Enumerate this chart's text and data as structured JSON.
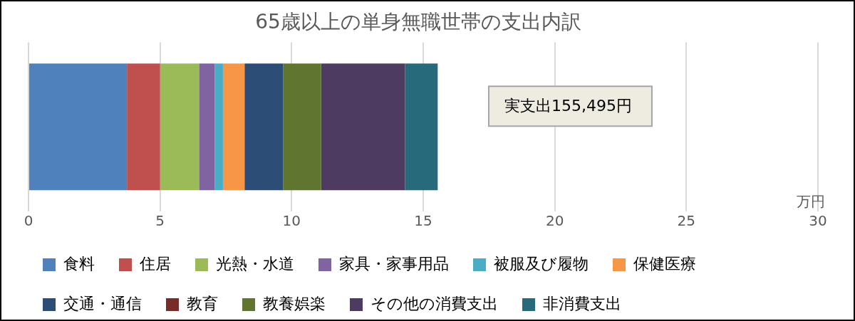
{
  "chart_data": {
    "type": "bar",
    "orientation": "horizontal",
    "stacked": true,
    "title": "65歳以上の単身無職世帯の支出内訳",
    "xlabel": "万円",
    "categories": [
      null
    ],
    "series": [
      {
        "name": "食料",
        "color": "#4f81bd",
        "values": [
          3.74
        ]
      },
      {
        "name": "住居",
        "color": "#c0504d",
        "values": [
          1.26
        ]
      },
      {
        "name": "光熱・水道",
        "color": "#9bbb59",
        "values": [
          1.48
        ]
      },
      {
        "name": "家具・家事用品",
        "color": "#8064a2",
        "values": [
          0.6
        ]
      },
      {
        "name": "被服及び履物",
        "color": "#4bacc6",
        "values": [
          0.31
        ]
      },
      {
        "name": "保健医療",
        "color": "#f79646",
        "values": [
          0.82
        ]
      },
      {
        "name": "交通・通信",
        "color": "#2c4d75",
        "values": [
          1.47
        ]
      },
      {
        "name": "教育",
        "color": "#772c2a",
        "values": [
          0
        ]
      },
      {
        "name": "教養娯楽",
        "color": "#5f7530",
        "values": [
          1.44
        ]
      },
      {
        "name": "その他の消費支出",
        "color": "#4d3b62",
        "values": [
          3.19
        ]
      },
      {
        "name": "非消費支出",
        "color": "#276a7c",
        "values": [
          1.24
        ]
      }
    ],
    "xlim": [
      0,
      30
    ],
    "xticks": [
      0,
      5,
      10,
      15,
      20,
      25,
      30
    ],
    "grid": "x",
    "legend": "bottom",
    "annotations": [
      "実支出155,495円"
    ]
  }
}
